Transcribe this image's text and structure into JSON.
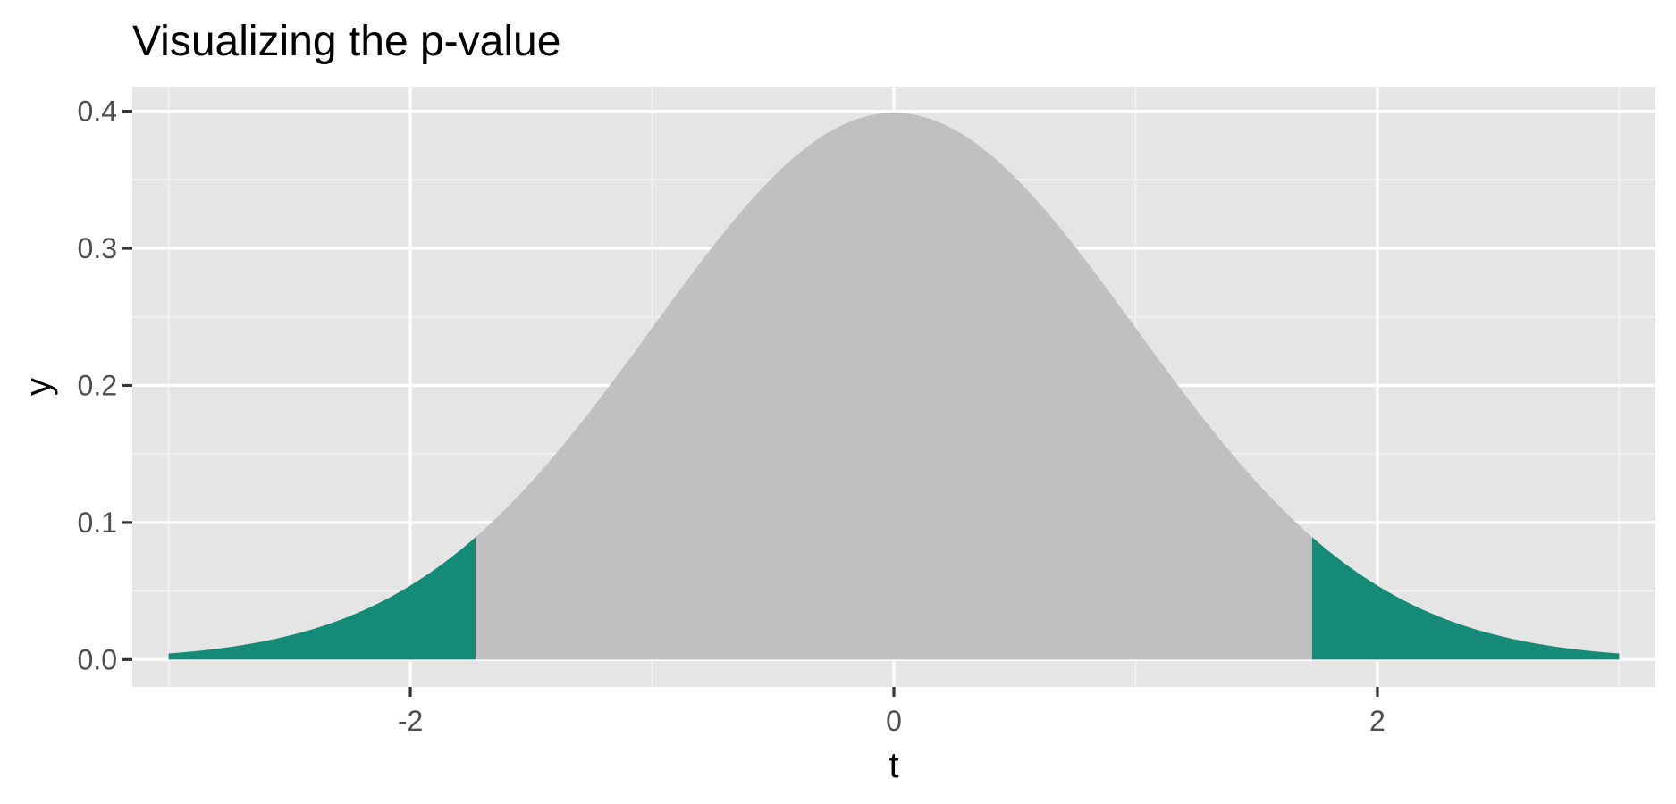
{
  "chart_data": {
    "type": "area",
    "title": "Visualizing the p-value",
    "xlabel": "t",
    "ylabel": "y",
    "xlim": [
      -3.15,
      3.15
    ],
    "ylim": [
      -0.02,
      0.418
    ],
    "x_ticks": [
      {
        "value": -2,
        "label": "-2"
      },
      {
        "value": 0,
        "label": "0"
      },
      {
        "value": 2,
        "label": "2"
      }
    ],
    "y_ticks": [
      {
        "value": 0.0,
        "label": "0.0"
      },
      {
        "value": 0.1,
        "label": "0.1"
      },
      {
        "value": 0.2,
        "label": "0.2"
      },
      {
        "value": 0.3,
        "label": "0.3"
      },
      {
        "value": 0.4,
        "label": "0.4"
      }
    ],
    "x_minor_gridlines": [
      -3,
      -1,
      1,
      3
    ],
    "y_minor_gridlines": [
      0.05,
      0.15,
      0.25,
      0.35
    ],
    "grid": true,
    "curve": {
      "distribution": "standard normal density",
      "x_range": [
        -3,
        3
      ],
      "peak": 0.399
    },
    "series": [
      {
        "x_range": [
          -3,
          -1.73
        ],
        "color": "#158a77"
      },
      {
        "x_range": [
          -1.73,
          1.73
        ],
        "color": "#c0c0c0"
      },
      {
        "x_range": [
          1.73,
          3
        ],
        "color": "#158a77"
      }
    ],
    "colors": {
      "panel": "#e5e5e5",
      "grid_major": "#ffffff",
      "grid_minor": "#f2f2f2",
      "tick": "#333333"
    }
  }
}
